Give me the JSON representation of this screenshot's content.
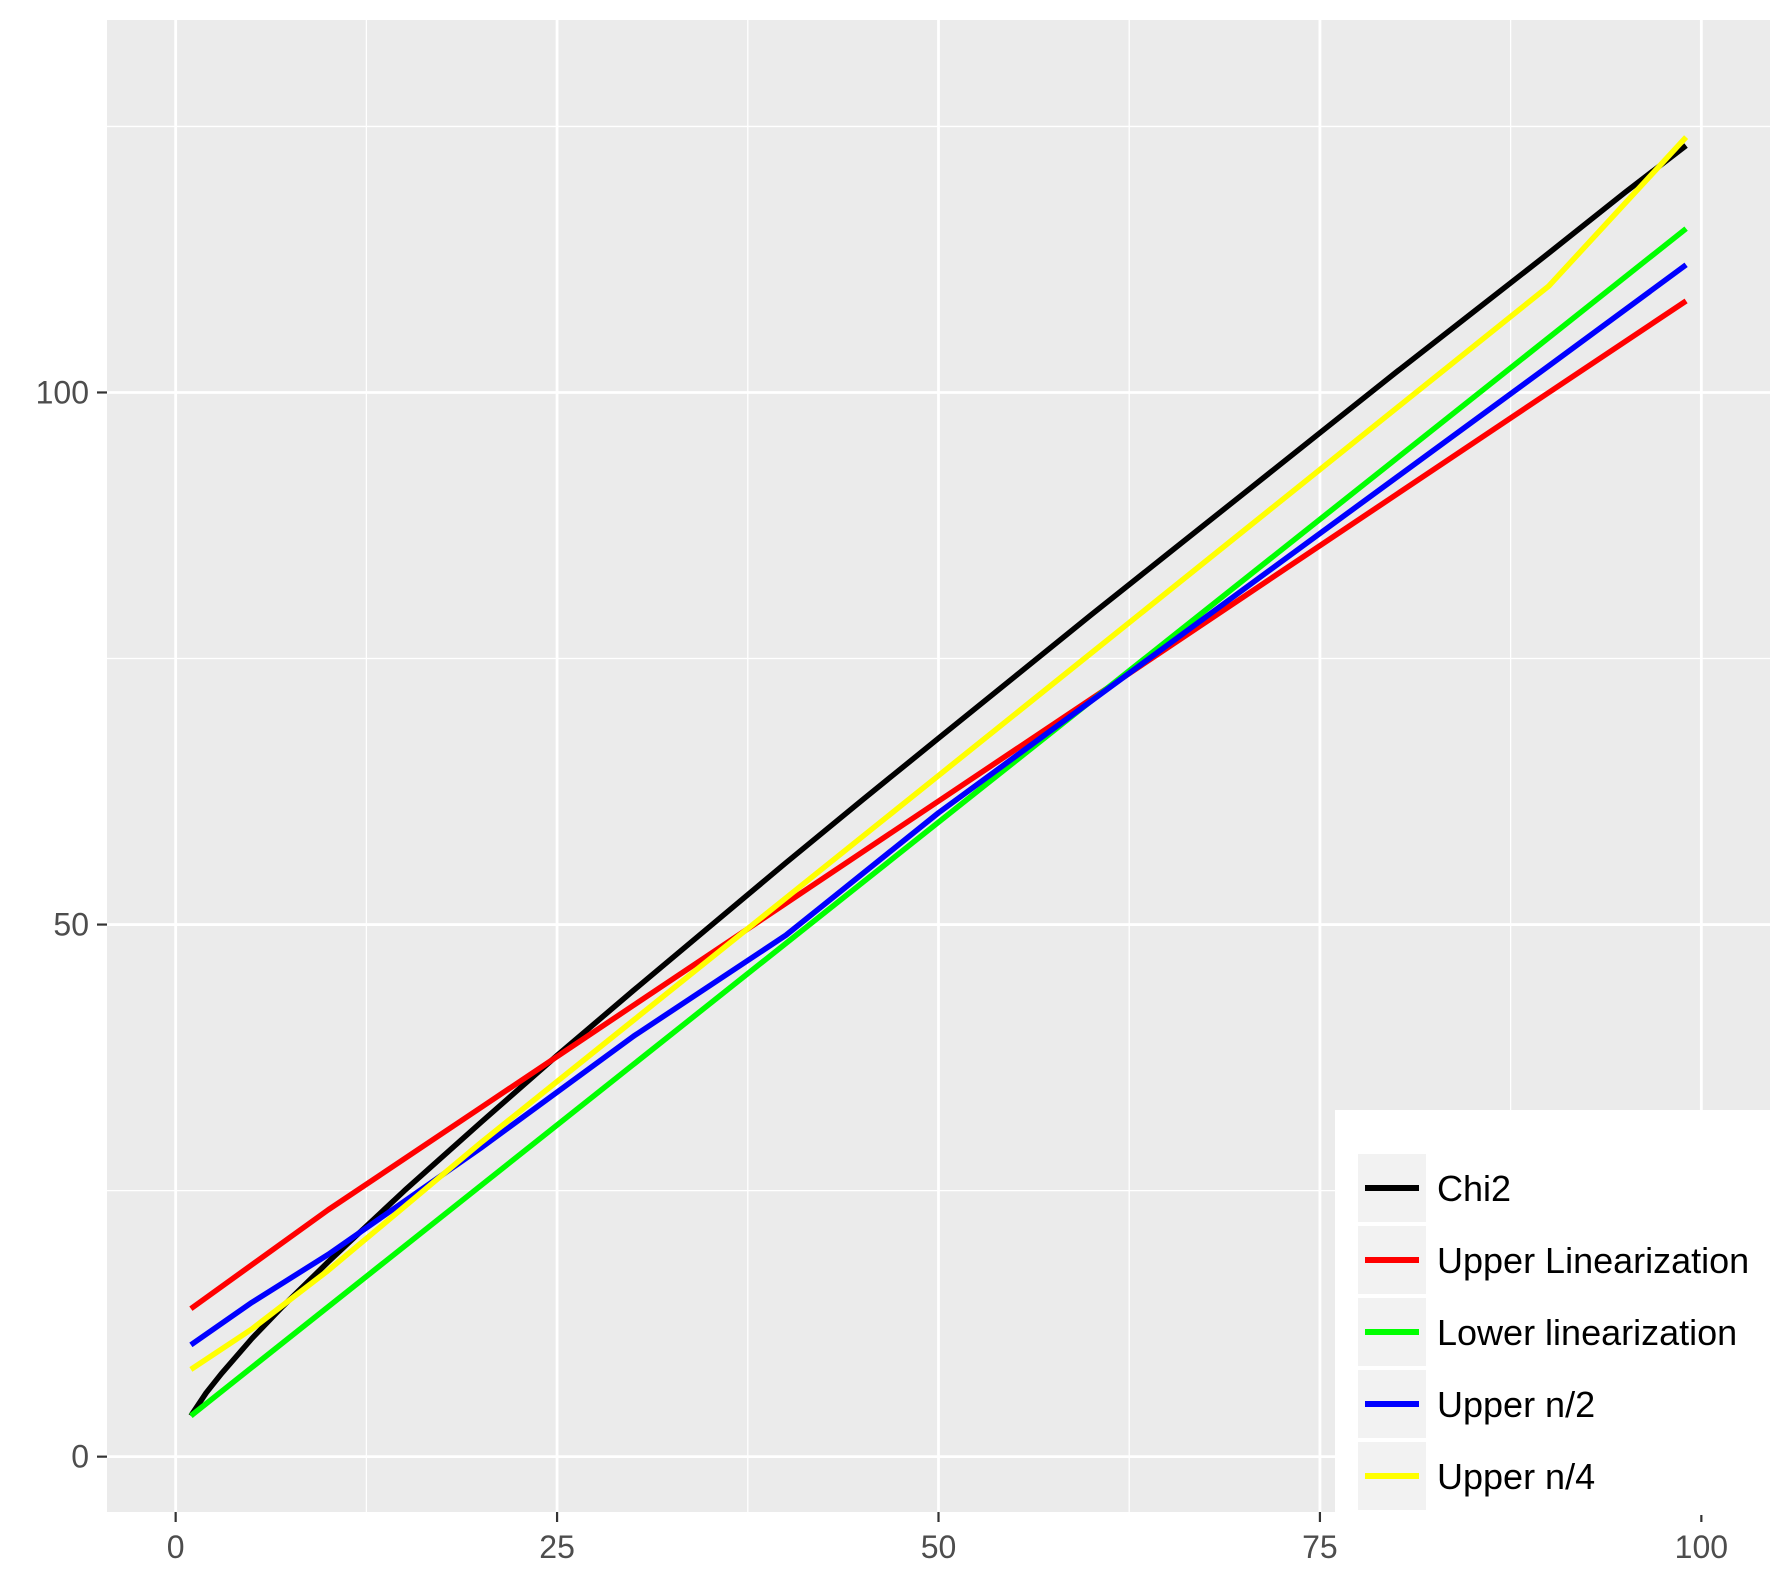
{
  "chart_data": {
    "type": "line",
    "title": "",
    "xlabel": "",
    "ylabel": "",
    "xlim": [
      -4.5,
      104.5
    ],
    "ylim": [
      -5.2,
      135.0
    ],
    "x_ticks": [
      0,
      25,
      50,
      75,
      100
    ],
    "y_ticks": [
      0,
      50,
      100
    ],
    "x_tick_labels": [
      "0",
      "25",
      "50",
      "75",
      "100"
    ],
    "y_tick_labels": [
      "0",
      "50",
      "100"
    ],
    "grid": true,
    "legend_position": "bottom-right",
    "background": "#ebebeb",
    "series": [
      {
        "name": "Chi2",
        "color": "#000000",
        "x": [
          1,
          2,
          3,
          5,
          7,
          10,
          15,
          20,
          25,
          30,
          35,
          40,
          45,
          50,
          55,
          60,
          65,
          70,
          75,
          80,
          85,
          90,
          95,
          99
        ],
        "y": [
          3.84,
          6.0,
          7.8,
          11.1,
          14.1,
          18.3,
          25.0,
          31.4,
          37.7,
          43.8,
          49.8,
          55.8,
          61.7,
          67.5,
          73.3,
          79.1,
          84.8,
          90.5,
          96.2,
          101.9,
          107.5,
          113.1,
          118.8,
          123.2
        ]
      },
      {
        "name": "Upper Linearization",
        "color": "#ff0000",
        "x": [
          1,
          10,
          20,
          30,
          40,
          50,
          60,
          70,
          80,
          90,
          99
        ],
        "y": [
          13.9,
          23.2,
          32.8,
          42.4,
          52.0,
          61.6,
          71.2,
          80.8,
          90.4,
          100.0,
          108.6
        ]
      },
      {
        "name": "Lower linearization",
        "color": "#00ff00",
        "x": [
          1,
          99
        ],
        "y": [
          3.84,
          115.4
        ]
      },
      {
        "name": "Upper n/2",
        "color": "#0000ff",
        "x": [
          1,
          5,
          10,
          15,
          20,
          30,
          40,
          50,
          60,
          70,
          80,
          90,
          99
        ],
        "y": [
          10.5,
          14.5,
          19.0,
          24.0,
          29.0,
          39.5,
          49.0,
          60.5,
          71.0,
          81.5,
          92.0,
          102.5,
          112.0
        ]
      },
      {
        "name": "Upper n/4",
        "color": "#ffff00",
        "x": [
          1,
          5,
          10,
          15,
          20,
          30,
          40,
          50,
          60,
          70,
          80,
          90,
          99
        ],
        "y": [
          8.2,
          12.0,
          17.5,
          23.5,
          29.5,
          41.0,
          52.5,
          64.0,
          75.5,
          87.0,
          98.5,
          110.0,
          124.0
        ]
      }
    ]
  }
}
